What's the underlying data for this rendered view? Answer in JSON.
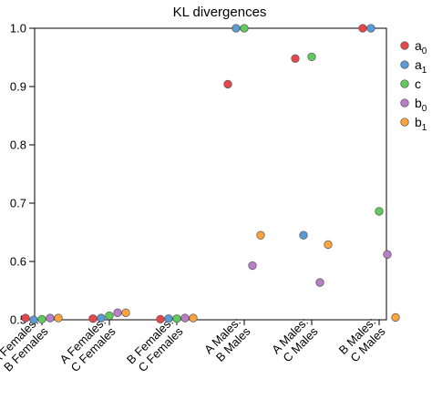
{
  "chart_data": {
    "type": "scatter",
    "title": "KL divergences",
    "xlabel": "",
    "ylabel": "",
    "ylim": [
      0.5,
      1.0
    ],
    "yticks": [
      "0.5",
      "0.6",
      "0.7",
      "0.8",
      "0.9",
      "1.0"
    ],
    "grid": false,
    "legend_position": "right",
    "categories": [
      [
        "A Females:",
        "B Females"
      ],
      [
        "A Females:",
        "C Females"
      ],
      [
        "B Females:",
        "C Females"
      ],
      [
        "A Males:",
        "B Males"
      ],
      [
        "A Males:",
        "C Males"
      ],
      [
        "B Males:",
        "C Males"
      ]
    ],
    "series": [
      {
        "name": "a",
        "subscript": "0",
        "color": "#e8474a",
        "values": [
          0.503,
          0.502,
          0.501,
          0.904,
          0.948,
          1.0
        ]
      },
      {
        "name": "a",
        "subscript": "1",
        "color": "#5b9bd5",
        "values": [
          0.5,
          0.503,
          0.502,
          1.0,
          0.645,
          1.0
        ]
      },
      {
        "name": "c",
        "subscript": "",
        "color": "#5fcb5a",
        "values": [
          0.501,
          0.507,
          0.502,
          1.0,
          0.951,
          0.686
        ]
      },
      {
        "name": "b",
        "subscript": "0",
        "color": "#b87fc9",
        "values": [
          0.503,
          0.512,
          0.503,
          0.593,
          0.564,
          0.612
        ]
      },
      {
        "name": "b",
        "subscript": "1",
        "color": "#fca33c",
        "values": [
          0.503,
          0.512,
          0.503,
          0.645,
          0.629,
          0.504
        ]
      }
    ]
  }
}
